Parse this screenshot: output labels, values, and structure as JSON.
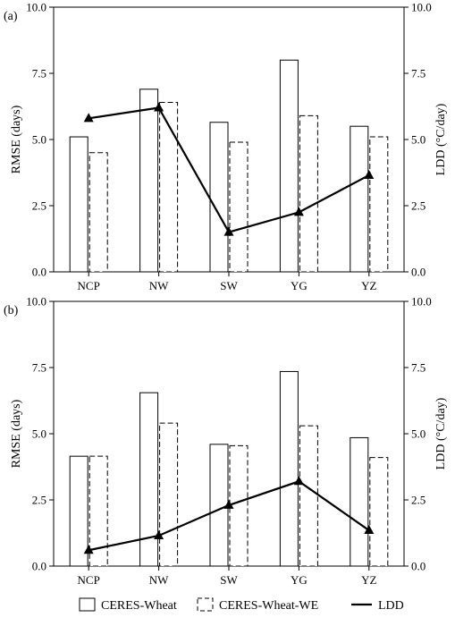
{
  "legend": {
    "ceres": "CERES-Wheat",
    "ceres_we": "CERES-Wheat-WE",
    "ldd": "LDD"
  },
  "colors": {
    "line": "#000000",
    "bar_stroke": "#000000",
    "bar_fill": "#ffffff"
  },
  "chart_data": [
    {
      "type": "bar",
      "panel_label": "(a)",
      "categories": [
        "NCP",
        "NW",
        "SW",
        "YG",
        "YZ"
      ],
      "ylabel": "RMSE (days)",
      "y2label": "LDD (°C/day)",
      "ylim": [
        0,
        10
      ],
      "y2lim": [
        0,
        10
      ],
      "yticks": [
        "0.0",
        "2.5",
        "5.0",
        "7.5",
        "10.0"
      ],
      "series": [
        {
          "name": "CERES-Wheat",
          "kind": "bar",
          "style": "solid",
          "values": [
            5.1,
            6.9,
            5.65,
            8.0,
            5.5
          ]
        },
        {
          "name": "CERES-Wheat-WE",
          "kind": "bar",
          "style": "dashed",
          "values": [
            4.5,
            6.4,
            4.9,
            5.9,
            5.1
          ]
        },
        {
          "name": "LDD",
          "kind": "line",
          "axis": "right",
          "values": [
            5.8,
            6.2,
            1.5,
            2.25,
            3.65
          ]
        }
      ]
    },
    {
      "type": "bar",
      "panel_label": "(b)",
      "categories": [
        "NCP",
        "NW",
        "SW",
        "YG",
        "YZ"
      ],
      "ylabel": "RMSE (days)",
      "y2label": "LDD (°C/day)",
      "ylim": [
        0,
        10
      ],
      "y2lim": [
        0,
        10
      ],
      "yticks": [
        "0.0",
        "2.5",
        "5.0",
        "7.5",
        "10.0"
      ],
      "series": [
        {
          "name": "CERES-Wheat",
          "kind": "bar",
          "style": "solid",
          "values": [
            4.15,
            6.55,
            4.6,
            7.35,
            4.85
          ]
        },
        {
          "name": "CERES-Wheat-WE",
          "kind": "bar",
          "style": "dashed",
          "values": [
            4.15,
            5.4,
            4.55,
            5.3,
            4.1
          ]
        },
        {
          "name": "LDD",
          "kind": "line",
          "axis": "right",
          "values": [
            0.6,
            1.15,
            2.3,
            3.2,
            1.35
          ]
        }
      ]
    }
  ]
}
